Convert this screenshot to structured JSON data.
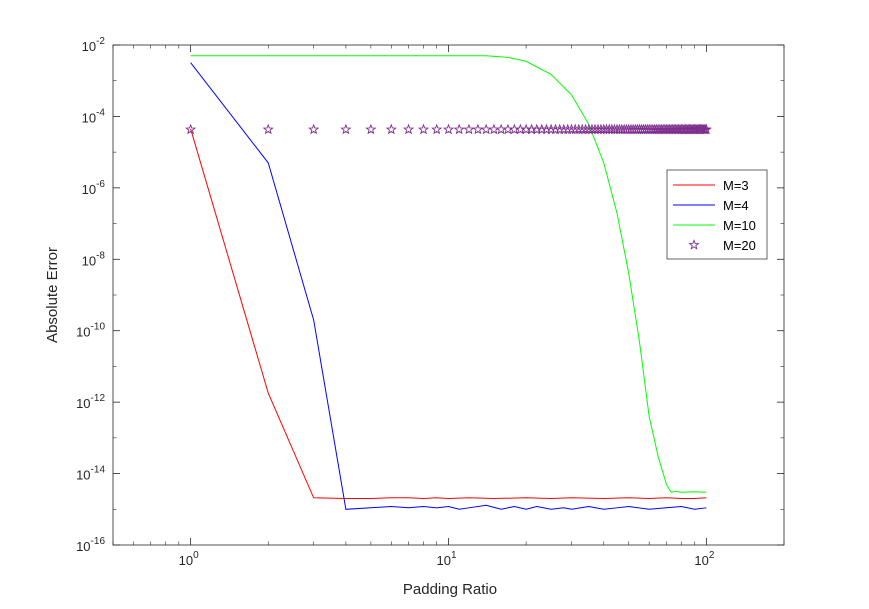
{
  "chart_data": {
    "type": "line",
    "title": "",
    "xlabel": "Padding Ratio",
    "ylabel": "Absolute Error",
    "xscale": "log",
    "yscale": "log",
    "xlim": [
      0.5,
      200
    ],
    "ylim": [
      1e-16,
      0.01
    ],
    "x_ticks": [
      1,
      10,
      100
    ],
    "x_tick_labels": [
      {
        "base": "10",
        "exp": "0"
      },
      {
        "base": "10",
        "exp": "1"
      },
      {
        "base": "10",
        "exp": "2"
      }
    ],
    "y_ticks": [
      1e-16,
      1e-14,
      1e-12,
      1e-10,
      1e-08,
      1e-06,
      0.0001,
      0.01
    ],
    "y_tick_labels": [
      {
        "base": "10",
        "exp": "-16"
      },
      {
        "base": "10",
        "exp": "-14"
      },
      {
        "base": "10",
        "exp": "-12"
      },
      {
        "base": "10",
        "exp": "-10"
      },
      {
        "base": "10",
        "exp": "-8"
      },
      {
        "base": "10",
        "exp": "-6"
      },
      {
        "base": "10",
        "exp": "-4"
      },
      {
        "base": "10",
        "exp": "-2"
      }
    ],
    "grid": false,
    "legend_position": "right",
    "series": [
      {
        "name": "M=3",
        "color": "#ff0000",
        "style": "line",
        "x": [
          1,
          2,
          3,
          4,
          5,
          6,
          7,
          8,
          9,
          10,
          12,
          15,
          20,
          25,
          30,
          40,
          50,
          60,
          70,
          80,
          90,
          100
        ],
        "y": [
          4.5e-05,
          1.8e-12,
          2.1e-15,
          2e-15,
          2e-15,
          2.1e-15,
          2.1e-15,
          2e-15,
          2.1e-15,
          2e-15,
          2.1e-15,
          2e-15,
          2.1e-15,
          2e-15,
          2.1e-15,
          2e-15,
          2.1e-15,
          2e-15,
          2.1e-15,
          2e-15,
          2e-15,
          2.1e-15
        ]
      },
      {
        "name": "M=4",
        "color": "#0000ff",
        "style": "line",
        "x": [
          1,
          2,
          3,
          4,
          5,
          6,
          7,
          8,
          9,
          10,
          11,
          12,
          14,
          16,
          18,
          20,
          22,
          25,
          28,
          30,
          35,
          40,
          45,
          50,
          60,
          70,
          80,
          90,
          100
        ],
        "y": [
          0.0032,
          5e-06,
          2e-10,
          1e-15,
          1.1e-15,
          1.2e-15,
          1.1e-15,
          1.2e-15,
          1.1e-15,
          1.2e-15,
          1e-15,
          1.1e-15,
          1.3e-15,
          1e-15,
          1.2e-15,
          1e-15,
          1.2e-15,
          1e-15,
          1.1e-15,
          1e-15,
          1.2e-15,
          1e-15,
          1.1e-15,
          1.2e-15,
          1e-15,
          1.1e-15,
          1.2e-15,
          1e-15,
          1.1e-15
        ]
      },
      {
        "name": "M=10",
        "color": "#00ff00",
        "style": "line",
        "x": [
          1,
          5,
          10,
          14,
          17,
          20,
          25,
          30,
          35,
          40,
          45,
          50,
          55,
          60,
          65,
          70,
          73,
          76,
          80,
          90,
          100
        ],
        "y": [
          0.005,
          0.005,
          0.005,
          0.005,
          0.0045,
          0.0035,
          0.0015,
          0.0004,
          6e-05,
          5e-06,
          2e-07,
          4e-09,
          5e-11,
          4e-13,
          3e-14,
          5e-15,
          3e-15,
          3.2e-15,
          3e-15,
          3.1e-15,
          3e-15
        ]
      },
      {
        "name": "M=20",
        "color": "#7e2f8e",
        "style": "marker",
        "marker": "pentagram",
        "x_range": [
          1,
          100
        ],
        "y_constant": 4.3e-05
      }
    ]
  }
}
